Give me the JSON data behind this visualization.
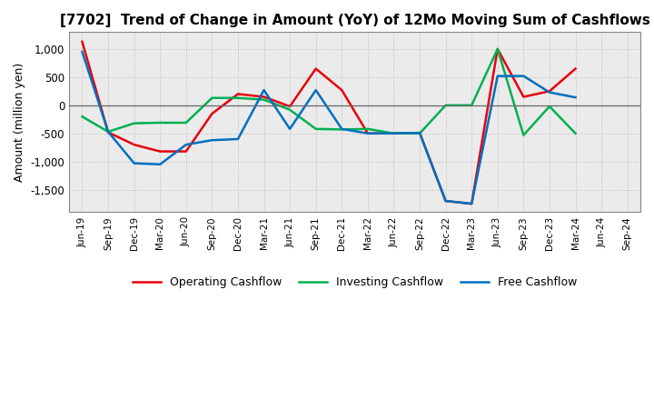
{
  "title": "[7702]  Trend of Change in Amount (YoY) of 12Mo Moving Sum of Cashflows",
  "ylabel": "Amount (million yen)",
  "x_labels": [
    "Jun-19",
    "Sep-19",
    "Dec-19",
    "Mar-20",
    "Jun-20",
    "Sep-20",
    "Dec-20",
    "Mar-21",
    "Jun-21",
    "Sep-21",
    "Dec-21",
    "Mar-22",
    "Jun-22",
    "Sep-22",
    "Dec-22",
    "Mar-23",
    "Jun-23",
    "Sep-23",
    "Dec-23",
    "Mar-24",
    "Jun-24",
    "Sep-24"
  ],
  "operating": [
    1130,
    -480,
    -700,
    -820,
    -820,
    -150,
    200,
    150,
    -20,
    650,
    270,
    -500,
    -500,
    -490,
    -1700,
    -1750,
    1000,
    150,
    250,
    650,
    null,
    null
  ],
  "investing": [
    -200,
    -470,
    -320,
    -310,
    -310,
    130,
    130,
    100,
    -80,
    -420,
    -430,
    -420,
    -500,
    -500,
    0,
    0,
    1000,
    -530,
    -20,
    -500,
    null,
    null
  ],
  "free": [
    950,
    -470,
    -1030,
    -1050,
    -700,
    -620,
    -600,
    270,
    -420,
    270,
    -420,
    -500,
    -500,
    -490,
    -1700,
    -1750,
    520,
    520,
    230,
    140,
    null,
    null
  ],
  "op_color": "#e8000d",
  "inv_color": "#00b050",
  "free_color": "#0070c0",
  "bg_color": "#ffffff",
  "plot_bg": "#ebebeb",
  "ylim": [
    -1900,
    1300
  ],
  "yticks": [
    -1500,
    -1000,
    -500,
    0,
    500,
    1000
  ],
  "legend_labels": [
    "Operating Cashflow",
    "Investing Cashflow",
    "Free Cashflow"
  ]
}
